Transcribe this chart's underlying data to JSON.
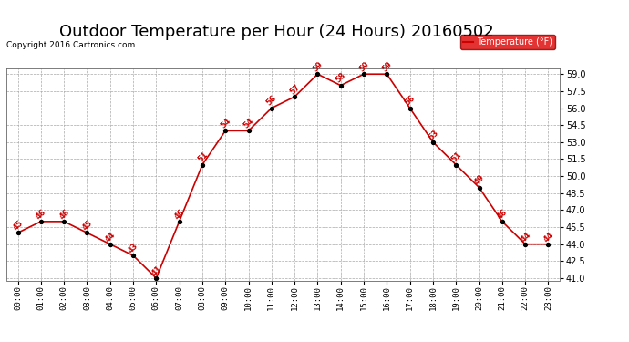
{
  "title": "Outdoor Temperature per Hour (24 Hours) 20160502",
  "copyright_text": "Copyright 2016 Cartronics.com",
  "legend_label": "Temperature (°F)",
  "hours": [
    "00:00",
    "01:00",
    "02:00",
    "03:00",
    "04:00",
    "05:00",
    "06:00",
    "07:00",
    "08:00",
    "09:00",
    "10:00",
    "11:00",
    "12:00",
    "13:00",
    "14:00",
    "15:00",
    "16:00",
    "17:00",
    "18:00",
    "19:00",
    "20:00",
    "21:00",
    "22:00",
    "23:00"
  ],
  "temps": [
    45,
    46,
    46,
    45,
    44,
    43,
    41,
    46,
    51,
    54,
    54,
    56,
    57,
    59,
    58,
    59,
    59,
    56,
    53,
    51,
    49,
    46,
    44,
    44
  ],
  "line_color": "#cc0000",
  "marker_color": "#000000",
  "label_color": "#cc0000",
  "grid_color": "#aaaaaa",
  "background_color": "#ffffff",
  "ylim_min": 41.0,
  "ylim_max": 59.0,
  "ytick_step": 1.5,
  "title_fontsize": 13,
  "legend_bg": "#dd0000",
  "legend_text_color": "#ffffff"
}
